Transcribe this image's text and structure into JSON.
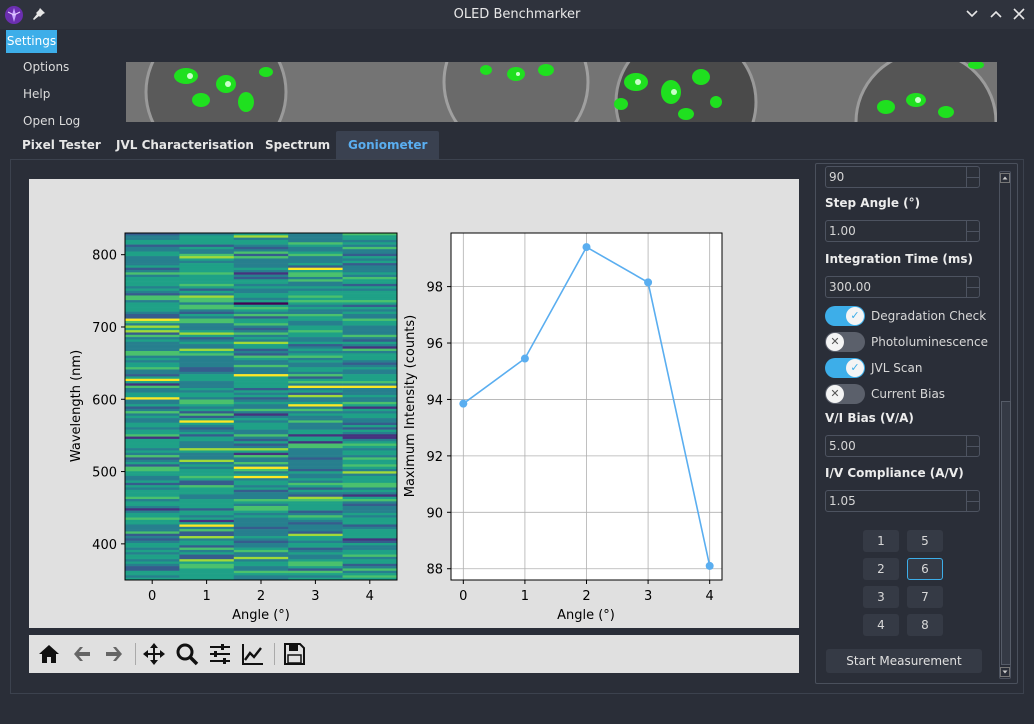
{
  "window": {
    "title": "OLED Benchmarker"
  },
  "menu": {
    "settings": "Settings",
    "items": [
      "Options",
      "Help",
      "Open Log"
    ]
  },
  "tabs": [
    "Pixel Tester",
    "JVL Characterisation",
    "Spectrum",
    "Goniometer"
  ],
  "active_tab": "Goniometer",
  "colors": {
    "accent": "#3daee9",
    "line": "#5aaef0",
    "background": "#2a2e38"
  },
  "toolbar_icons": [
    "home-icon",
    "back-arrow-icon",
    "forward-arrow-icon",
    "pan-icon",
    "zoom-icon",
    "configure-subplots-icon",
    "edit-axes-icon",
    "save-icon"
  ],
  "panel": {
    "top_value": "90",
    "step_angle_label": "Step Angle (°)",
    "step_angle_value": "1.00",
    "integration_label": "Integration Time (ms)",
    "integration_value": "300.00",
    "toggles": [
      {
        "label": "Degradation Check",
        "on": true
      },
      {
        "label": "Photoluminescence",
        "on": false
      },
      {
        "label": "JVL Scan",
        "on": true
      },
      {
        "label": "Current Bias",
        "on": false
      }
    ],
    "bias_label": "V/I Bias (V/A)",
    "bias_value": "5.00",
    "compliance_label": "I/V Compliance (A/V)",
    "compliance_value": "1.05",
    "pixels": [
      "1",
      "2",
      "3",
      "4",
      "5",
      "6",
      "7",
      "8"
    ],
    "selected_pixel": "6",
    "start_label": "Start Measurement"
  },
  "chart_data": [
    {
      "type": "heatmap",
      "xlabel": "Angle (°)",
      "ylabel": "Wavelength (nm)",
      "x_ticks": [
        "0",
        "1",
        "2",
        "3",
        "4"
      ],
      "y_ticks": [
        "400",
        "500",
        "600",
        "700",
        "800"
      ],
      "xlim": [
        -0.5,
        4.5
      ],
      "ylim": [
        350,
        830
      ],
      "colormap": "viridis"
    },
    {
      "type": "line",
      "xlabel": "Angle (°)",
      "ylabel": "Maximum Intensity (counts)",
      "x": [
        0,
        1,
        2,
        3,
        4
      ],
      "y": [
        93.85,
        95.45,
        99.4,
        98.15,
        88.1
      ],
      "x_ticks": [
        "0",
        "1",
        "2",
        "3",
        "4"
      ],
      "y_ticks": [
        "88",
        "90",
        "92",
        "94",
        "96",
        "98"
      ],
      "xlim": [
        -0.2,
        4.2
      ],
      "ylim": [
        87.6,
        99.9
      ],
      "grid": true
    }
  ]
}
